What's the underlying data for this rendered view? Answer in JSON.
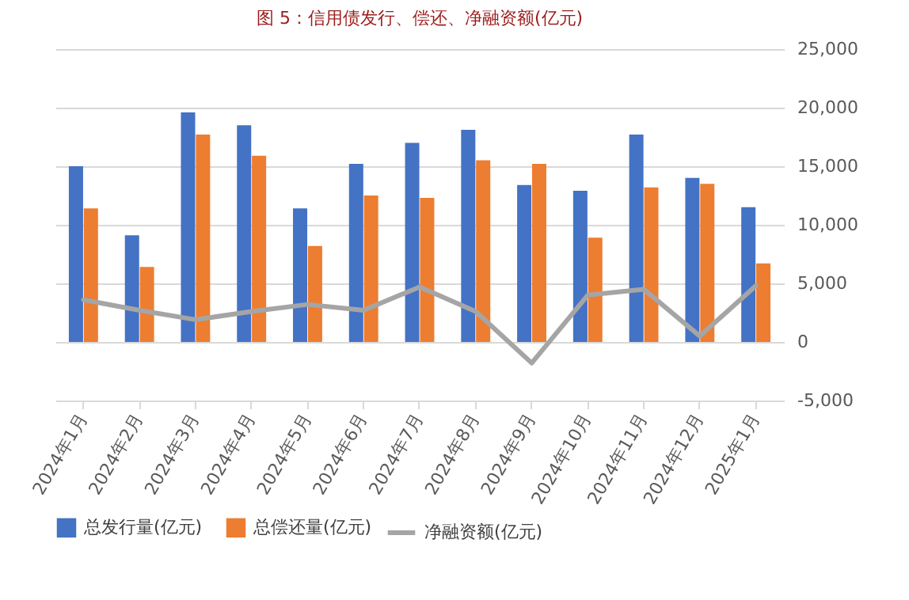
{
  "chart_data": {
    "type": "bar",
    "title": "图 5：信用债发行、偿还、净融资额(亿元)",
    "categories": [
      "2024年1月",
      "2024年2月",
      "2024年3月",
      "2024年4月",
      "2024年5月",
      "2024年6月",
      "2024年7月",
      "2024年8月",
      "2024年9月",
      "2024年10月",
      "2024年11月",
      "2024年12月",
      "2025年1月"
    ],
    "series": [
      {
        "name": "总发行量(亿元)",
        "color": "#4472c4",
        "values": [
          15000,
          9100,
          19600,
          18500,
          11400,
          15200,
          17000,
          18100,
          13400,
          12900,
          17700,
          14000,
          11500
        ]
      },
      {
        "name": "总偿还量(亿元)",
        "color": "#ed7d31",
        "values": [
          11400,
          6400,
          17700,
          15900,
          8200,
          12500,
          12300,
          15500,
          15200,
          8900,
          13200,
          13500,
          6700
        ]
      },
      {
        "name": "净融资额(亿元)",
        "color": "#a5a5a5",
        "type": "line",
        "values": [
          3600,
          2700,
          1900,
          2600,
          3200,
          2700,
          4700,
          2600,
          -1800,
          4000,
          4500,
          500,
          4800
        ]
      }
    ],
    "ylim": [
      -5000,
      25000
    ],
    "yticks": [
      {
        "value": -5000,
        "label": "-5,000"
      },
      0,
      {
        "value": 5000,
        "label": "5,000"
      },
      {
        "value": 10000,
        "label": "10,000"
      },
      {
        "value": 15000,
        "label": "15,000"
      },
      {
        "value": 20000,
        "label": "20,000"
      },
      {
        "value": 25000,
        "label": "25,000"
      }
    ],
    "grid": "y",
    "legend": "bottom"
  }
}
